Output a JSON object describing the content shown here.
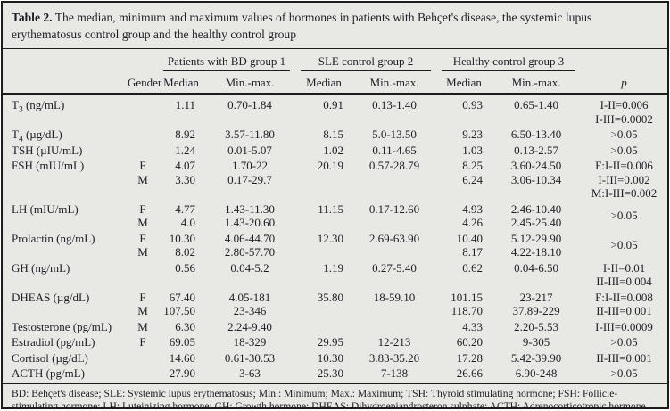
{
  "colors": {
    "background": "#e8e8e5",
    "text": "#1e1e26",
    "rule": "#1c1c1c"
  },
  "title": {
    "label": "Table 2.",
    "text": "The median, minimum and maximum values of hormones in patients with Behçet's disease, the systemic lupus erythematosus control group and the healthy control group"
  },
  "table": {
    "header": {
      "gender": "Gender",
      "median": "Median",
      "minmax": "Min.-max.",
      "p": "p",
      "groups": [
        "Patients with BD group 1",
        "SLE control group 2",
        "Healthy control group 3"
      ]
    },
    "rows": [
      {
        "hormone_pre": "T",
        "hormone_sub": "3",
        "hormone_rest": " (ng/mL)",
        "gender": "",
        "bd_med": "1.11",
        "bd_range": "0.70-1.84",
        "sle_med": "0.91",
        "sle_range": "0.13-1.40",
        "hc_med": "0.93",
        "hc_range": "0.65-1.40",
        "p": [
          "I-II=0.006",
          "I-III=0.0002"
        ]
      },
      {
        "grp": true,
        "hormone_pre": "T",
        "hormone_sub": "4",
        "hormone_rest": " (µg/dL)",
        "gender": "",
        "bd_med": "8.92",
        "bd_range": "3.57-11.80",
        "sle_med": "8.15",
        "sle_range": "5.0-13.50",
        "hc_med": "9.23",
        "hc_range": "6.50-13.40",
        "p": [
          ">0.05"
        ]
      },
      {
        "grp": true,
        "hormone": "TSH (µIU/mL)",
        "gender": "",
        "bd_med": "1.24",
        "bd_range": "0.01-5.07",
        "sle_med": "1.02",
        "sle_range": "0.11-4.65",
        "hc_med": "1.03",
        "hc_range": "0.13-2.57",
        "p": [
          ">0.05"
        ]
      },
      {
        "grp": true,
        "hormone": "FSH (mIU/mL)",
        "gender": "F",
        "bd_med": "4.07",
        "bd_range": "1.70-22",
        "sle_med": "20.19",
        "sle_range": "0.57-28.79",
        "hc_med": "8.25",
        "hc_range": "3.60-24.50",
        "p": [
          "F:I-II=0.006"
        ]
      },
      {
        "hormone": "",
        "gender": "M",
        "bd_med": "3.30",
        "bd_range": "0.17-29.7",
        "sle_med": "",
        "sle_range": "",
        "hc_med": "6.24",
        "hc_range": "3.06-10.34",
        "p": [
          "I-III=0.002"
        ]
      },
      {
        "hormone": "",
        "gender": "",
        "bd_med": "",
        "bd_range": "",
        "sle_med": "",
        "sle_range": "",
        "hc_med": "",
        "hc_range": "",
        "p": [
          "M:I-III=0.002"
        ]
      },
      {
        "grp": true,
        "hormone": "LH (mIU/mL)",
        "gender": "F",
        "bd_med": "4.77",
        "bd_range": "1.43-11.30",
        "sle_med": "11.15",
        "sle_range": "0.17-12.60",
        "hc_med": "4.93",
        "hc_range": "2.46-10.40",
        "p": [
          ">0.05"
        ],
        "p_rowspan": 2
      },
      {
        "hormone": "",
        "gender": "M",
        "bd_med": "4.0",
        "bd_range": "1.43-20.60",
        "sle_med": "",
        "sle_range": "",
        "hc_med": "4.26",
        "hc_range": "2.45-25.40",
        "no_p": true
      },
      {
        "grp": true,
        "hormone": "Prolactin (ng/mL)",
        "gender": "F",
        "bd_med": "10.30",
        "bd_range": "4.06-44.70",
        "sle_med": "12.30",
        "sle_range": "2.69-63.90",
        "hc_med": "10.40",
        "hc_range": "5.12-29.90",
        "p": [
          ">0.05"
        ],
        "p_rowspan": 2
      },
      {
        "hormone": "",
        "gender": "M",
        "bd_med": "8.02",
        "bd_range": "2.80-57.70",
        "sle_med": "",
        "sle_range": "",
        "hc_med": "8.17",
        "hc_range": "4.22-18.10",
        "no_p": true
      },
      {
        "grp": true,
        "hormone": "GH (ng/mL)",
        "gender": "",
        "bd_med": "0.56",
        "bd_range": "0.04-5.2",
        "sle_med": "1.19",
        "sle_range": "0.27-5.40",
        "hc_med": "0.62",
        "hc_range": "0.04-6.50",
        "p": [
          "I-II=0.01",
          "II-III=0.004"
        ]
      },
      {
        "grp": true,
        "hormone": "DHEAS (µg/dL)",
        "gender": "F",
        "bd_med": "67.40",
        "bd_range": "4.05-181",
        "sle_med": "35.80",
        "sle_range": "18-59.10",
        "hc_med": "101.15",
        "hc_range": "23-217",
        "p": [
          "F:I-II=0.008"
        ]
      },
      {
        "hormone": "",
        "gender": "M",
        "bd_med": "107.50",
        "bd_range": "23-346",
        "sle_med": "",
        "sle_range": "",
        "hc_med": "118.70",
        "hc_range": "37.89-229",
        "p": [
          "II-III=0.001"
        ]
      },
      {
        "grp": true,
        "hormone": "Testosterone (pg/mL)",
        "gender": "M",
        "bd_med": "6.30",
        "bd_range": "2.24-9.40",
        "sle_med": "",
        "sle_range": "",
        "hc_med": "4.33",
        "hc_range": "2.20-5.53",
        "p": [
          "I-III=0.0009"
        ]
      },
      {
        "grp": true,
        "hormone": "Estradiol (pg/mL)",
        "gender": "F",
        "bd_med": "69.05",
        "bd_range": "18-329",
        "sle_med": "29.95",
        "sle_range": "12-213",
        "hc_med": "60.20",
        "hc_range": "9-305",
        "p": [
          ">0.05"
        ]
      },
      {
        "grp": true,
        "hormone": "Cortisol (µg/dL)",
        "gender": "",
        "bd_med": "14.60",
        "bd_range": "0.61-30.53",
        "sle_med": "10.30",
        "sle_range": "3.83-35.20",
        "hc_med": "17.28",
        "hc_range": "5.42-39.90",
        "p": [
          "II-III=0.001"
        ]
      },
      {
        "grp": true,
        "hormone": "ACTH (pg/mL)",
        "gender": "",
        "bd_med": "27.90",
        "bd_range": "3-63",
        "sle_med": "25.30",
        "sle_range": "7-138",
        "hc_med": "26.66",
        "hc_range": "6.90-248",
        "p": [
          ">0.05"
        ]
      }
    ]
  },
  "footnote": {
    "text": "BD: Behçet's disease; SLE: Systemic lupus erythematosus; Min.: Minimum; Max.: Maximum; TSH: Thyroid stimulating hormone; FSH: Follicle-stimulating hormone; LH: Luteinizing hormone; GH: Growth hormone; DHEAS: Dihydroepiandrosteron sulphate; ACTH: Adrenocorticotropic hormone."
  }
}
